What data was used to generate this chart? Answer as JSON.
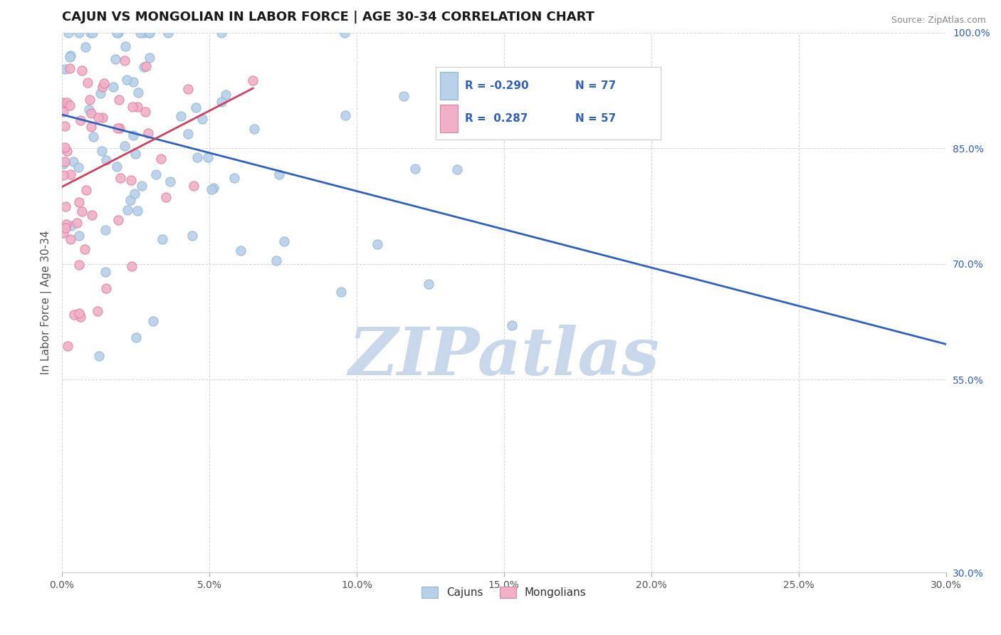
{
  "title": "CAJUN VS MONGOLIAN IN LABOR FORCE | AGE 30-34 CORRELATION CHART",
  "source": "Source: ZipAtlas.com",
  "ylabel": "In Labor Force | Age 30-34",
  "xlim": [
    0.0,
    30.0
  ],
  "ylim": [
    30.0,
    100.0
  ],
  "xticks": [
    0.0,
    5.0,
    10.0,
    15.0,
    20.0,
    25.0,
    30.0
  ],
  "yticks": [
    100.0,
    85.0,
    70.0,
    55.0,
    30.0
  ],
  "xticklabels": [
    "0.0%",
    "5.0%",
    "10.0%",
    "15.0%",
    "20.0%",
    "25.0%",
    "30.0%"
  ],
  "yticklabels": [
    "100.0%",
    "85.0%",
    "70.0%",
    "55.0%",
    "30.0%"
  ],
  "cajun_R": -0.29,
  "cajun_N": 77,
  "mongolian_R": 0.287,
  "mongolian_N": 57,
  "cajun_color": "#b8d0e8",
  "cajun_edge": "#90b8d8",
  "mongolian_color": "#f0b0c8",
  "mongolian_edge": "#e080a0",
  "trend_cajun_color": "#3060c0",
  "trend_mongolian_color": "#d04060",
  "background_color": "#ffffff",
  "grid_color": "#cccccc",
  "watermark": "ZIPatlas",
  "watermark_color": "#c8d8ea",
  "legend_label_cajun": "Cajuns",
  "legend_label_mongolian": "Mongolians"
}
